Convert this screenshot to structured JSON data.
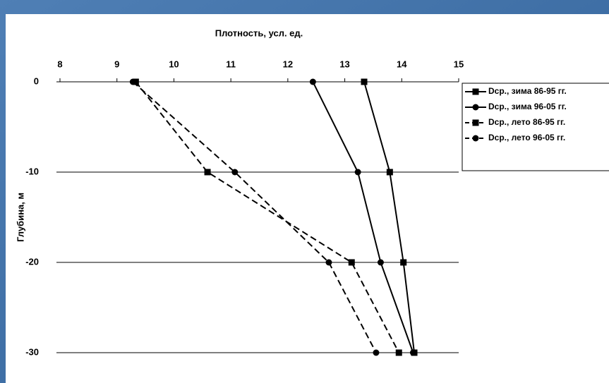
{
  "chart_data": {
    "type": "line",
    "x_label": "Плотность, усл. ед.",
    "y_label": "Глубина, м",
    "y": [
      0,
      -10,
      -20,
      -30
    ],
    "xlim": [
      8,
      15
    ],
    "xticks": [
      8,
      9,
      10,
      11,
      12,
      13,
      14,
      15
    ],
    "ylim": [
      -30,
      0
    ],
    "yticks": [
      0,
      -10,
      -20,
      -30
    ],
    "grid": true,
    "legend": "right",
    "series": [
      {
        "name": "Dср., зима 86-95 гг.",
        "color": "#000000",
        "line": "solid",
        "marker": "square",
        "values": [
          13.34,
          13.79,
          14.03,
          14.22
        ]
      },
      {
        "name": "Dср., зима 96-05 гг.",
        "color": "#000000",
        "line": "solid",
        "marker": "circle",
        "values": [
          12.44,
          13.23,
          13.63,
          14.2
        ]
      },
      {
        "name": "Dср., лето 86-95 гг.",
        "color": "#000000",
        "line": "dashed",
        "marker": "square",
        "values": [
          9.33,
          10.59,
          13.12,
          13.95
        ]
      },
      {
        "name": "Dср., лето 96-05 гг.",
        "color": "#000000",
        "line": "dashed",
        "marker": "circle",
        "values": [
          9.28,
          11.07,
          12.72,
          13.55
        ]
      }
    ]
  }
}
